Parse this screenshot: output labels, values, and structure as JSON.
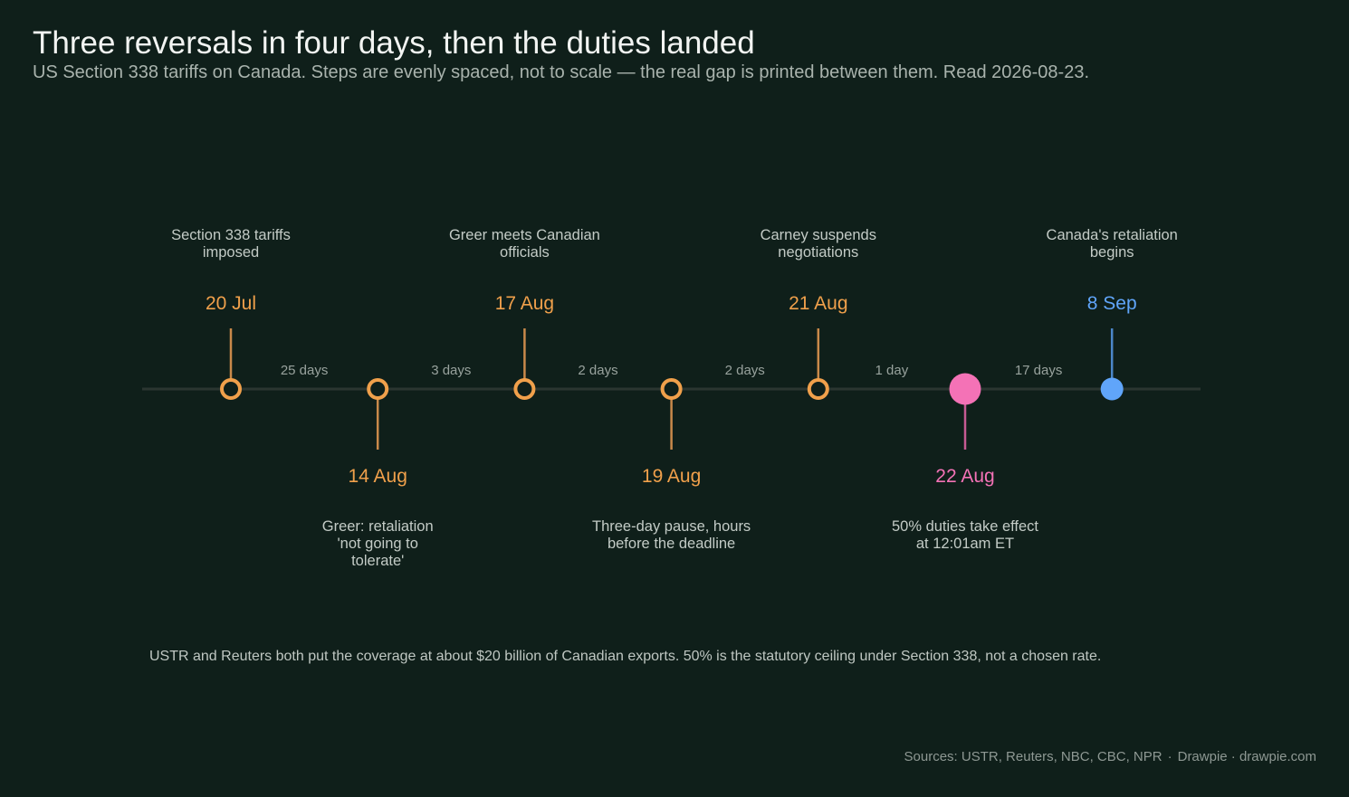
{
  "header": {
    "title": "Three reversals in four days, then the duties landed",
    "subtitle": "US Section 338 tariffs on Canada. Steps are evenly spaced, not to scale — the real gap is printed between them. Read 2026-08-23."
  },
  "colors": {
    "background": "#0f1f1a",
    "axis": "#2b3631",
    "step": "#f0a04b",
    "step_stem": "#c9894a",
    "effect": "#f472b6",
    "effect_stem": "#c65a93",
    "future": "#60a5fa",
    "future_stem": "#4b86c8",
    "label": "#c3cbc6",
    "gap": "#98a29d"
  },
  "events": [
    {
      "date": "20 Jul",
      "label": [
        "Section 338 tariffs",
        "imposed"
      ],
      "kind": "step",
      "side": "top"
    },
    {
      "date": "14 Aug",
      "label": [
        "Greer: retaliation",
        "'not going to",
        "tolerate'"
      ],
      "kind": "step",
      "side": "bottom"
    },
    {
      "date": "17 Aug",
      "label": [
        "Greer meets Canadian",
        "officials"
      ],
      "kind": "step",
      "side": "top"
    },
    {
      "date": "19 Aug",
      "label": [
        "Three-day pause, hours",
        "before the deadline"
      ],
      "kind": "step",
      "side": "bottom"
    },
    {
      "date": "21 Aug",
      "label": [
        "Carney suspends",
        "negotiations"
      ],
      "kind": "step",
      "side": "top"
    },
    {
      "date": "22 Aug",
      "label": [
        "50% duties take effect",
        "at 12:01am ET"
      ],
      "kind": "effect",
      "side": "bottom"
    },
    {
      "date": "8 Sep",
      "label": [
        "Canada's retaliation",
        "begins"
      ],
      "kind": "future",
      "side": "top"
    }
  ],
  "gaps": [
    "25 days",
    "3 days",
    "2 days",
    "2 days",
    "1 day",
    "17 days"
  ],
  "footnote": "USTR and Reuters both put the coverage at about $20 billion of Canadian exports. 50% is the statutory ceiling under Section 338, not a chosen rate.",
  "sources": {
    "text": "Sources: USTR, Reuters, NBC, CBC, NPR",
    "credit": "Drawpie · drawpie.com"
  }
}
